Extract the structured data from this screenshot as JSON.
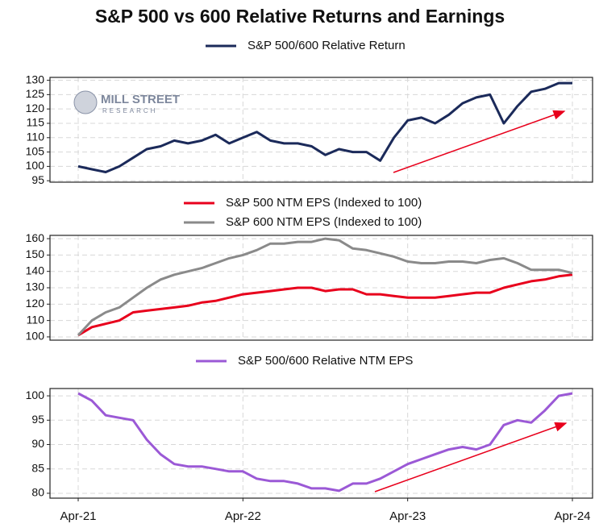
{
  "watermark": {
    "name": "MILL STREET",
    "sub": "RESEARCH"
  },
  "chart_data": [
    {
      "type": "line",
      "title": "S&P 500 vs 600 Relative Returns and Earnings",
      "grid": true,
      "legend": "top",
      "series": [
        {
          "name": "S&P 500/600 Relative Return",
          "color": "#1b2a5a",
          "values": [
            100,
            99,
            98,
            100,
            103,
            106,
            107,
            109,
            108,
            109,
            111,
            108,
            110,
            112,
            109,
            108,
            108,
            107,
            104,
            106,
            105,
            105,
            102,
            110,
            116,
            117,
            115,
            118,
            122,
            124,
            125,
            115,
            121,
            126,
            127,
            129,
            129
          ]
        }
      ],
      "ylim": [
        94.5,
        131
      ],
      "yticks": [
        95,
        100,
        105,
        110,
        115,
        120,
        125,
        130
      ]
    },
    {
      "type": "line",
      "grid": true,
      "legend": "top",
      "series": [
        {
          "name": "S&P 500 NTM EPS (Indexed to 100)",
          "color": "#e8001c",
          "values": [
            101,
            106,
            108,
            110,
            115,
            116,
            117,
            118,
            119,
            121,
            122,
            124,
            126,
            127,
            128,
            129,
            130,
            130,
            128,
            129,
            129,
            126,
            126,
            125,
            124,
            124,
            124,
            125,
            126,
            127,
            127,
            130,
            132,
            134,
            135,
            137,
            138
          ]
        },
        {
          "name": "S&P 600 NTM EPS (Indexed to 100)",
          "color": "#8a8a8a",
          "values": [
            101,
            110,
            115,
            118,
            124,
            130,
            135,
            138,
            140,
            142,
            145,
            148,
            150,
            153,
            157,
            157,
            158,
            158,
            160,
            159,
            154,
            153,
            151,
            149,
            146,
            145,
            145,
            146,
            146,
            145,
            147,
            148,
            145,
            141,
            141,
            141,
            139
          ]
        }
      ],
      "ylim": [
        98,
        162
      ],
      "yticks": [
        100,
        110,
        120,
        130,
        140,
        150,
        160
      ]
    },
    {
      "type": "line",
      "grid": true,
      "legend": "top",
      "categories": [
        "Apr-21",
        null,
        null,
        null,
        null,
        null,
        null,
        null,
        null,
        null,
        null,
        null,
        "Apr-22",
        null,
        null,
        null,
        null,
        null,
        null,
        null,
        null,
        null,
        null,
        null,
        "Apr-23",
        null,
        null,
        null,
        null,
        null,
        null,
        null,
        null,
        null,
        null,
        null,
        "Apr-24"
      ],
      "series": [
        {
          "name": "S&P 500/600 Relative NTM EPS",
          "color": "#9b59d6",
          "values": [
            100.5,
            99,
            96,
            95.5,
            95,
            91,
            88,
            86,
            85.5,
            85.5,
            85,
            84.5,
            84.5,
            83,
            82.5,
            82.5,
            82,
            81,
            81,
            80.5,
            82,
            82,
            83,
            84.5,
            86,
            87,
            88,
            89,
            89.5,
            89,
            90,
            94,
            95,
            94.5,
            97,
            100,
            100.5
          ]
        }
      ],
      "ylim": [
        79,
        101.5
      ],
      "yticks": [
        80,
        85,
        90,
        95,
        100
      ]
    }
  ]
}
